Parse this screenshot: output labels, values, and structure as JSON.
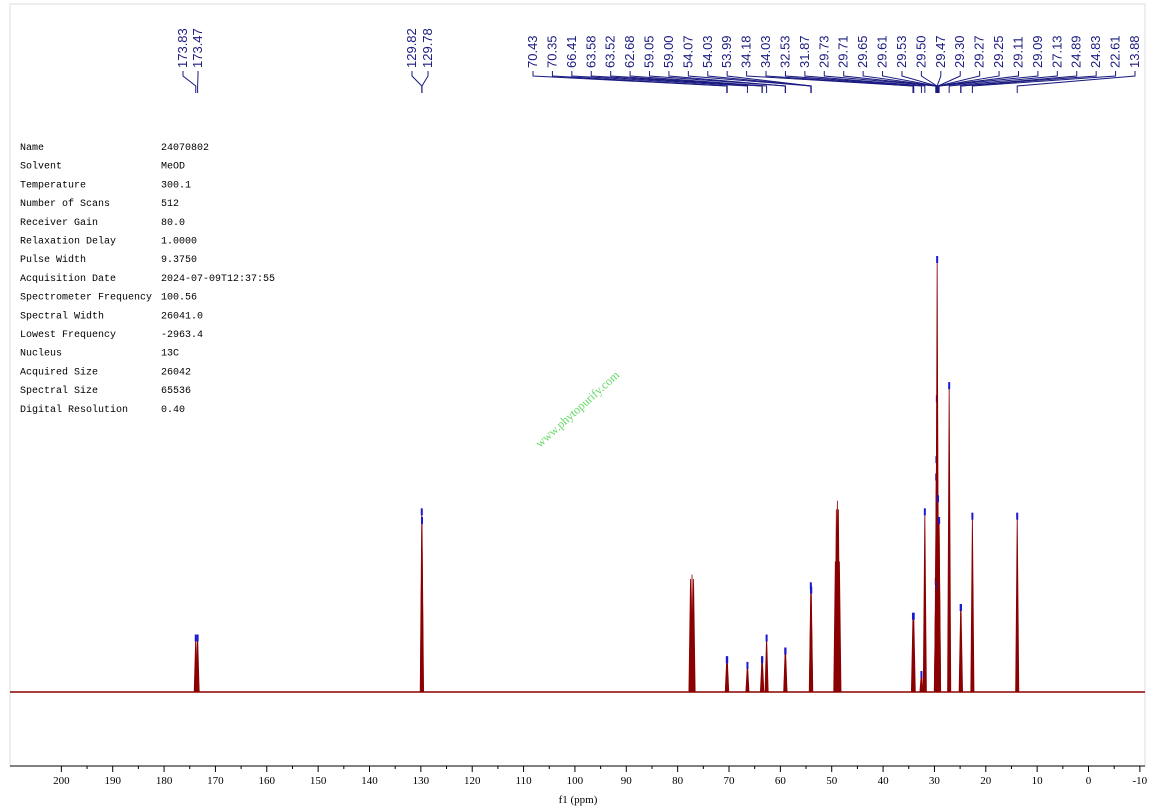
{
  "chart_data": {
    "type": "spectrum",
    "xlabel": "f1 (ppm)",
    "xlim": [
      210,
      -11
    ],
    "xticks": [
      200,
      190,
      180,
      170,
      160,
      150,
      140,
      130,
      120,
      110,
      100,
      90,
      80,
      70,
      60,
      50,
      40,
      30,
      20,
      10,
      0,
      -10
    ],
    "ylim": [
      -0.17,
      1.0
    ],
    "color": "#8b0000",
    "marker_color": "#1a1ad0",
    "label_color": "#1a1a80",
    "peaks": {
      "labels": [
        "173.83",
        "173.47",
        "129.82",
        "129.78",
        "70.43",
        "70.35",
        "66.41",
        "63.58",
        "63.52",
        "62.68",
        "59.05",
        "59.00",
        "54.07",
        "54.03",
        "53.99",
        "34.18",
        "34.03",
        "32.53",
        "31.87",
        "29.73",
        "29.71",
        "29.65",
        "29.61",
        "29.53",
        "29.50",
        "29.47",
        "29.30",
        "29.27",
        "29.25",
        "29.11",
        "29.09",
        "27.13",
        "24.89",
        "24.83",
        "22.61",
        "13.88"
      ],
      "x": [
        173.83,
        173.47,
        129.82,
        129.78,
        70.43,
        70.35,
        66.41,
        63.58,
        63.52,
        62.68,
        59.05,
        59.0,
        54.07,
        54.03,
        53.99,
        34.18,
        34.03,
        32.53,
        31.87,
        29.73,
        29.71,
        29.65,
        29.61,
        29.53,
        29.5,
        29.47,
        29.3,
        29.27,
        29.25,
        29.11,
        29.09,
        27.13,
        24.89,
        24.83,
        22.61,
        13.88
      ],
      "values": [
        0.13,
        0.13,
        0.42,
        0.4,
        0.08,
        0.08,
        0.067,
        0.08,
        0.08,
        0.13,
        0.1,
        0.1,
        0.25,
        0.24,
        0.24,
        0.18,
        0.18,
        0.046,
        0.42,
        0.26,
        0.26,
        0.5,
        0.54,
        0.68,
        0.45,
        1.0,
        0.45,
        0.25,
        0.25,
        0.4,
        0.4,
        0.71,
        0.2,
        0.2,
        0.41,
        0.41
      ]
    },
    "other_peaks": {
      "x": [
        77.5,
        77.2,
        76.9,
        49.3,
        49.1,
        48.9,
        48.7,
        48.5
      ],
      "values": [
        0.26,
        0.27,
        0.26,
        0.3,
        0.42,
        0.44,
        0.42,
        0.3
      ]
    }
  },
  "parameters": [
    [
      "Name",
      "24070802"
    ],
    [
      "Solvent",
      "MeOD"
    ],
    [
      "Temperature",
      "300.1"
    ],
    [
      "Number of Scans",
      "512"
    ],
    [
      "Receiver Gain",
      "80.0"
    ],
    [
      "Relaxation Delay",
      "1.0000"
    ],
    [
      "Pulse Width",
      "9.3750"
    ],
    [
      "Acquisition Date",
      "2024-07-09T12:37:55"
    ],
    [
      "Spectrometer Frequency",
      "100.56"
    ],
    [
      "Spectral Width",
      "26041.0"
    ],
    [
      "Lowest Frequency",
      "-2963.4"
    ],
    [
      "Nucleus",
      "13C"
    ],
    [
      "Acquired Size",
      "26042"
    ],
    [
      "Spectral Size",
      "65536"
    ],
    [
      "Digital Resolution",
      "0.40"
    ]
  ],
  "watermark": "www.phytopurify.com"
}
